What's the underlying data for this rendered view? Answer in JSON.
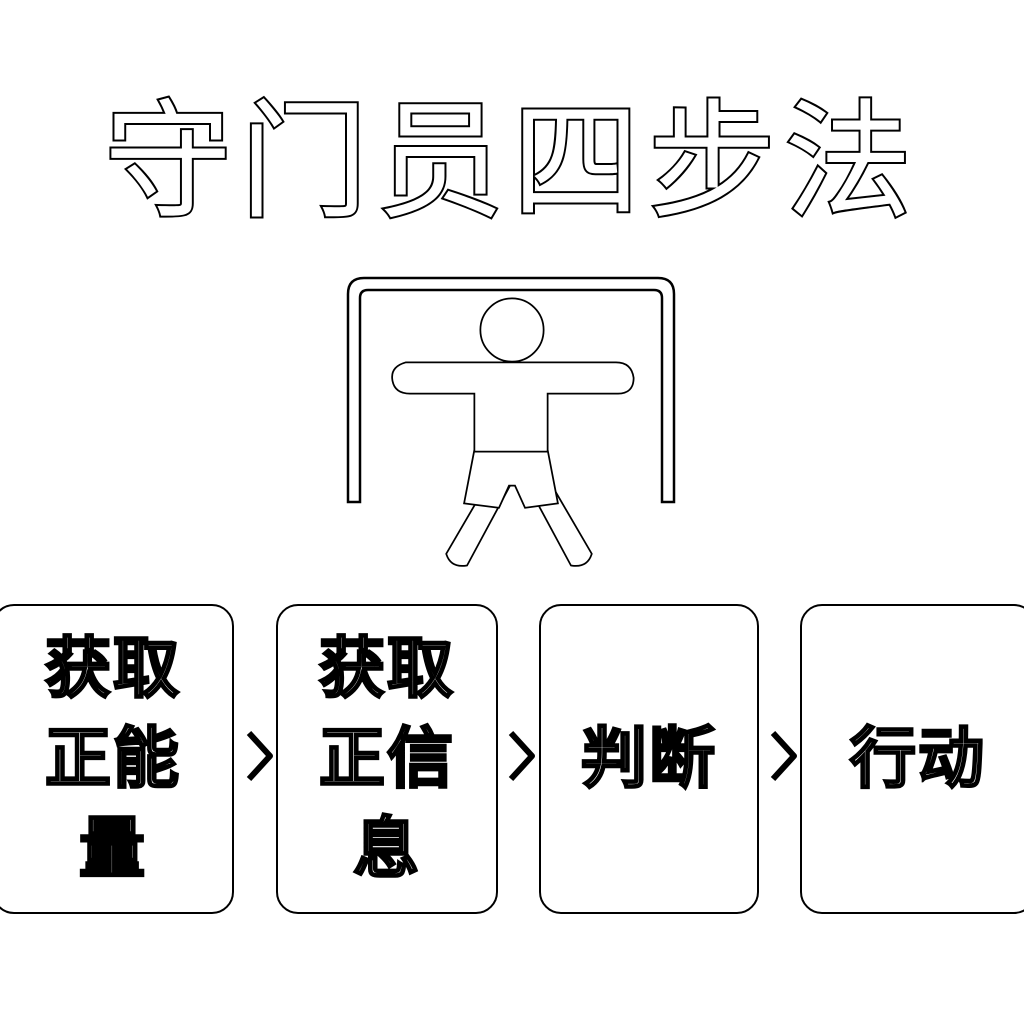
{
  "title": "守门员四步法",
  "icons": {
    "goalkeeper": "goalkeeper-in-goal-icon",
    "arrow": "chevron-right-icon"
  },
  "colors": {
    "outline": "#000000",
    "fill": "#ffffff"
  },
  "steps": [
    {
      "label": "获取\n正能\n量"
    },
    {
      "label": "获取\n正信\n息"
    },
    {
      "label": "判断"
    },
    {
      "label": "行动"
    }
  ]
}
